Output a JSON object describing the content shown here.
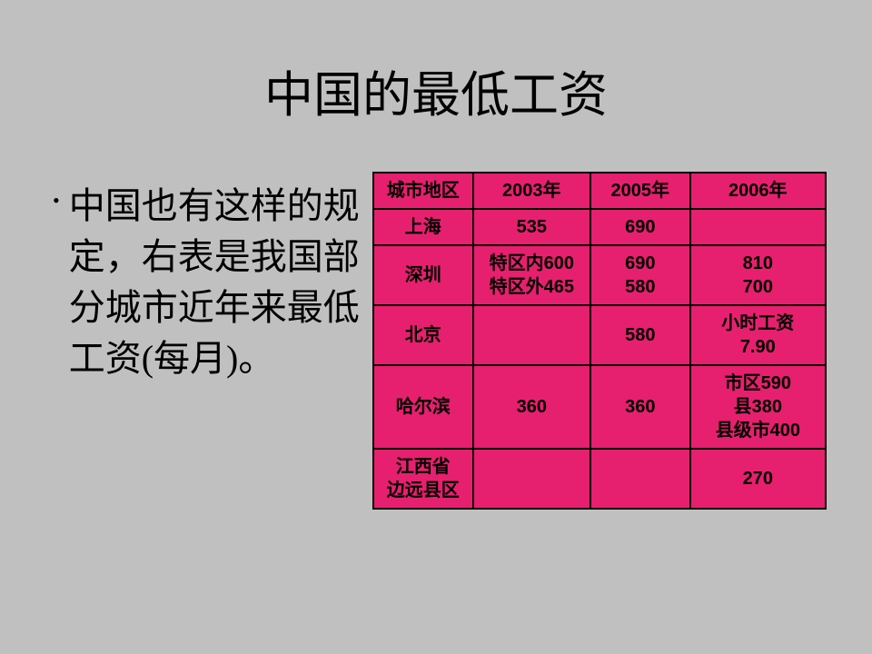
{
  "title": "中国的最低工资",
  "bullet": "中国也有这样的规定，右表是我国部分城市近年来最低工资(每月)。",
  "table": {
    "background_color": "#e6206e",
    "border_color": "#000000",
    "font_family": "SimHei",
    "font_size": 20,
    "font_weight": "bold",
    "columns_width_pct": [
      22,
      26,
      22,
      30
    ],
    "rows": [
      [
        "城市地区",
        "2003年",
        "2005年",
        "2006年"
      ],
      [
        "上海",
        "535",
        "690",
        ""
      ],
      [
        "深圳",
        "特区内600\n特区外465",
        "690\n580",
        "810\n700"
      ],
      [
        "北京",
        "",
        "580",
        "小时工资\n7.90"
      ],
      [
        "哈尔滨",
        "360",
        "360",
        "市区590\n县380\n县级市400"
      ],
      [
        "江西省\n边远县区",
        "",
        "",
        "270"
      ]
    ]
  }
}
